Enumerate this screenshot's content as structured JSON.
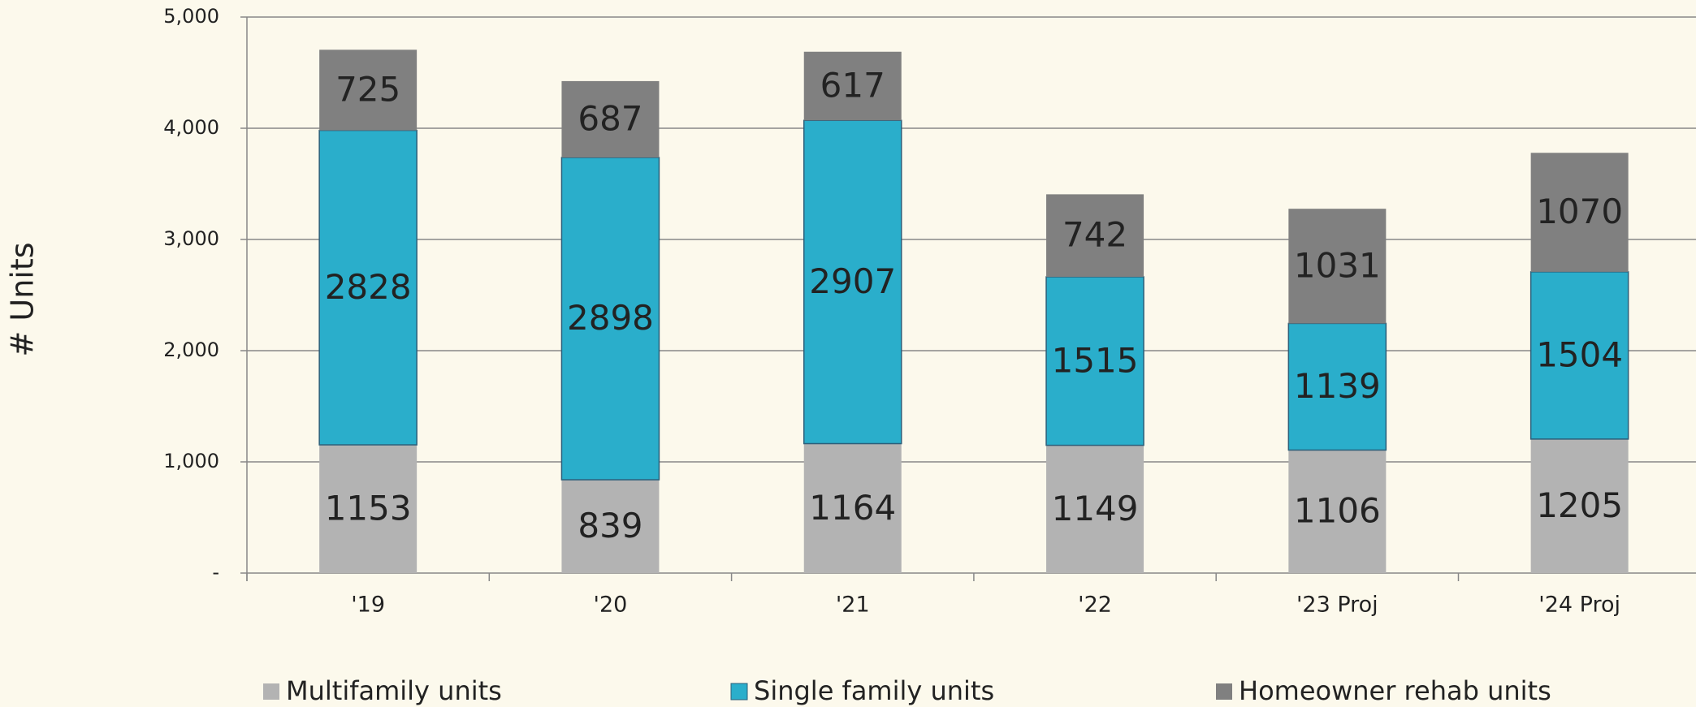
{
  "chart_data": {
    "type": "stacked_bar",
    "y_axis_label": "# Units",
    "categories": [
      "'19",
      "'20",
      "'21",
      "'22",
      "'23 Proj",
      "'24 Proj"
    ],
    "series": [
      {
        "name": "Multifamily units",
        "color": "#b3b3b3",
        "values": [
          1153,
          839,
          1164,
          1149,
          1106,
          1205
        ]
      },
      {
        "name": "Single family units",
        "color": "#2aaecb",
        "values": [
          2828,
          2898,
          2907,
          1515,
          1139,
          1504
        ]
      },
      {
        "name": "Homeowner rehab units",
        "color": "#808080",
        "values": [
          725,
          687,
          617,
          742,
          1031,
          1070
        ]
      }
    ],
    "ylim": [
      0,
      5000
    ],
    "yticks": [
      {
        "value": 0,
        "label": "-"
      },
      {
        "value": 1000,
        "label": "1,000"
      },
      {
        "value": 2000,
        "label": "2,000"
      },
      {
        "value": 3000,
        "label": "3,000"
      },
      {
        "value": 4000,
        "label": "4,000"
      },
      {
        "value": 5000,
        "label": "5,000"
      }
    ],
    "grid": true,
    "legend": "bottom"
  }
}
